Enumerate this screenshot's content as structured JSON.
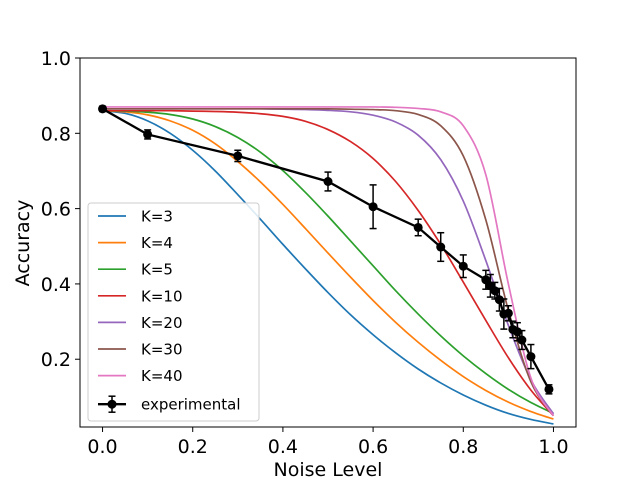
{
  "chart_data": {
    "type": "line",
    "title": "",
    "xlabel": "Noise Level",
    "ylabel": "Accuracy",
    "xlim": [
      -0.05,
      1.05
    ],
    "ylim": [
      0.02,
      1.0
    ],
    "xticks": [
      "0.0",
      "0.2",
      "0.4",
      "0.6",
      "0.8",
      "1.0"
    ],
    "yticks": [
      "0.2",
      "0.4",
      "0.6",
      "0.8",
      "1.0"
    ],
    "grid": false,
    "legend_position": "lower-left",
    "x": [
      0.0,
      0.05,
      0.1,
      0.15,
      0.2,
      0.25,
      0.3,
      0.35,
      0.4,
      0.45,
      0.5,
      0.55,
      0.6,
      0.65,
      0.7,
      0.75,
      0.8,
      0.85,
      0.9,
      0.95,
      1.0
    ],
    "series": [
      {
        "name": "K=3",
        "color": "#1f77b4",
        "values": [
          0.86,
          0.853,
          0.833,
          0.8,
          0.755,
          0.7,
          0.637,
          0.572,
          0.505,
          0.44,
          0.377,
          0.318,
          0.265,
          0.217,
          0.174,
          0.137,
          0.105,
          0.078,
          0.056,
          0.04,
          0.028
        ]
      },
      {
        "name": "K=4",
        "color": "#ff7f0e",
        "values": [
          0.86,
          0.857,
          0.849,
          0.833,
          0.808,
          0.772,
          0.725,
          0.671,
          0.611,
          0.547,
          0.482,
          0.418,
          0.356,
          0.298,
          0.245,
          0.197,
          0.154,
          0.117,
          0.086,
          0.061,
          0.041
        ]
      },
      {
        "name": "K=5",
        "color": "#2ca02c",
        "values": [
          0.86,
          0.859,
          0.856,
          0.85,
          0.838,
          0.818,
          0.789,
          0.75,
          0.701,
          0.643,
          0.58,
          0.514,
          0.448,
          0.382,
          0.32,
          0.262,
          0.209,
          0.162,
          0.12,
          0.085,
          0.056
        ]
      },
      {
        "name": "K=10",
        "color": "#d62728",
        "values": [
          0.86,
          0.86,
          0.86,
          0.86,
          0.859,
          0.858,
          0.856,
          0.852,
          0.845,
          0.832,
          0.81,
          0.778,
          0.733,
          0.672,
          0.595,
          0.505,
          0.405,
          0.303,
          0.204,
          0.118,
          0.05
        ]
      },
      {
        "name": "K=20",
        "color": "#9467bd",
        "values": [
          0.865,
          0.865,
          0.865,
          0.865,
          0.865,
          0.865,
          0.865,
          0.865,
          0.864,
          0.863,
          0.861,
          0.857,
          0.848,
          0.83,
          0.795,
          0.73,
          0.62,
          0.462,
          0.29,
          0.145,
          0.055
        ]
      },
      {
        "name": "K=30",
        "color": "#8c564b",
        "values": [
          0.865,
          0.865,
          0.865,
          0.865,
          0.865,
          0.865,
          0.865,
          0.865,
          0.865,
          0.865,
          0.865,
          0.864,
          0.863,
          0.86,
          0.85,
          0.82,
          0.74,
          0.57,
          0.33,
          0.14,
          0.05
        ]
      },
      {
        "name": "K=40",
        "color": "#e377c2",
        "values": [
          0.87,
          0.87,
          0.87,
          0.87,
          0.87,
          0.87,
          0.87,
          0.87,
          0.87,
          0.87,
          0.87,
          0.87,
          0.87,
          0.869,
          0.866,
          0.857,
          0.82,
          0.69,
          0.4,
          0.15,
          0.05
        ]
      }
    ],
    "experimental": {
      "name": "experimental",
      "color": "#000000",
      "x": [
        0.0,
        0.1,
        0.3,
        0.5,
        0.6,
        0.7,
        0.75,
        0.8,
        0.85,
        0.86,
        0.87,
        0.88,
        0.89,
        0.9,
        0.91,
        0.92,
        0.93,
        0.95,
        0.99
      ],
      "y": [
        0.865,
        0.797,
        0.74,
        0.672,
        0.605,
        0.55,
        0.498,
        0.447,
        0.411,
        0.395,
        0.382,
        0.358,
        0.32,
        0.322,
        0.279,
        0.273,
        0.251,
        0.207,
        0.12
      ],
      "err": [
        0.007,
        0.012,
        0.015,
        0.025,
        0.058,
        0.022,
        0.038,
        0.03,
        0.025,
        0.03,
        0.022,
        0.03,
        0.04,
        0.02,
        0.022,
        0.024,
        0.025,
        0.032,
        0.012
      ]
    }
  }
}
